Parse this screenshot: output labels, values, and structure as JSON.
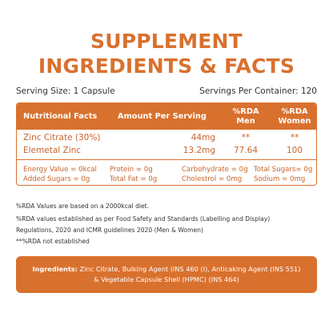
{
  "title_line1": "SUPPLEMENT",
  "title_line2": "INGREDIENTS & FACTS",
  "serving_size": "Serving Size: 1 Capsule",
  "servings_per_container": "Servings Per Container: 120",
  "table": {
    "headers": {
      "col1": "Nutritional Facts",
      "col2": "Amount Per Serving",
      "col3_line1": "%RDA",
      "col3_line2": "Men",
      "col4_line1": "%RDA",
      "col4_line2": "Women"
    },
    "rows": [
      {
        "name": "Zinc Citrate (30%)",
        "amount": "44mg",
        "rda_men": "**",
        "rda_women": "**"
      },
      {
        "name": "Elemetal Zinc",
        "amount": "13.2mg",
        "rda_men": "77.64",
        "rda_women": "100"
      }
    ],
    "energy": {
      "energy_value": "Energy Value = 0kcal",
      "protein": "Protein = 0g",
      "carbohydrate": "Carbohydrate = 0g",
      "total_sugars": "Total Sugars= 0g",
      "added_sugars": "Added Sugars = 0g",
      "total_fat": "Total Fat = 0g",
      "cholestrol": "Cholestrol = 0mg",
      "sodium": "Sodium = 0mg"
    }
  },
  "notes": [
    "%RDA Values are based on a 2000kcal diet.",
    "%RDA values established as per Food Safety and Standards (Labelling and Display)",
    "Regulations, 2020 and ICMR guidelines 2020 (Men & Women)",
    "**%RDA not established"
  ],
  "ingredients": {
    "label": "Ingredients:",
    "line1": " Zinc Citrate, Bulking Agent (INS 460 (I), Anticaking Agent (INS 551)",
    "line2": "& Vegetable Capsule Shell (HPMC) (INS 464)"
  },
  "colors": {
    "accent": "#d9712e",
    "text": "#333333"
  }
}
